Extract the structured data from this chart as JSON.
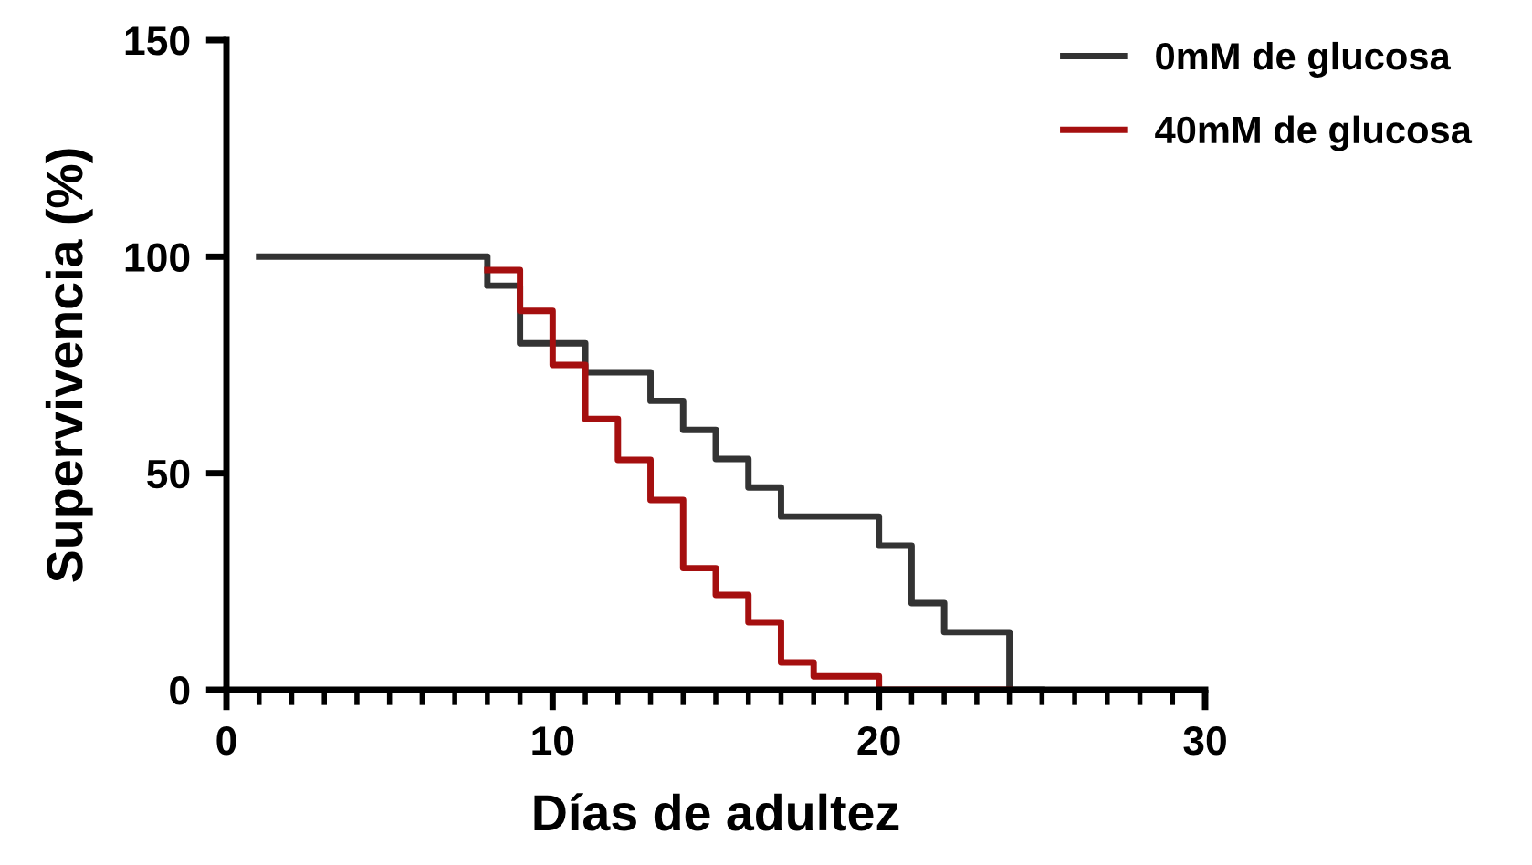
{
  "chart_data": {
    "type": "step",
    "xlabel": "Días de adultez",
    "ylabel": "Supervivencia (%)",
    "xlim": [
      0,
      30
    ],
    "xticks": [
      0,
      10,
      20,
      30
    ],
    "ylim": [
      0,
      150
    ],
    "yticks": [
      0,
      50,
      100,
      150
    ],
    "grid": false,
    "legend": "top right",
    "marker": "none",
    "line_style": "solid",
    "series": [
      {
        "name": "0mM de glucosa",
        "color": "#333333",
        "x": [
          1,
          8,
          9,
          11,
          13,
          14,
          15,
          16,
          17,
          20,
          21,
          22,
          24,
          25
        ],
        "values": [
          100,
          93.3,
          80,
          73.3,
          66.7,
          60,
          53.3,
          46.7,
          40,
          33.3,
          20,
          13.3,
          0,
          0
        ]
      },
      {
        "name": "40mM de glucosa",
        "color": "#a50f0f",
        "x": [
          8,
          9,
          10,
          11,
          12,
          13,
          14,
          15,
          16,
          17,
          18,
          20,
          24
        ],
        "values": [
          96.9,
          87.5,
          75,
          62.5,
          53.1,
          43.8,
          28.1,
          21.9,
          15.6,
          6.3,
          3.1,
          0,
          0
        ]
      }
    ]
  }
}
